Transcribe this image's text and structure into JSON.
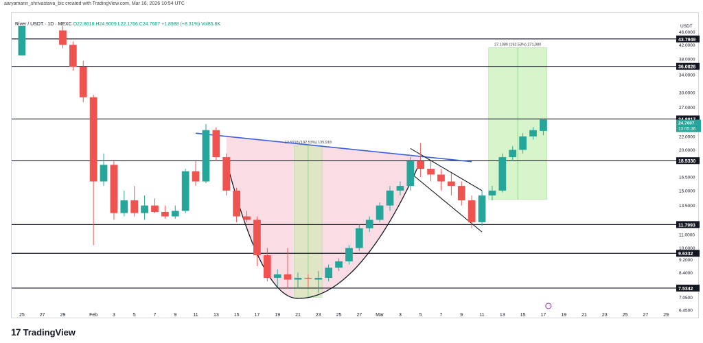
{
  "header": {
    "attribution": "aaryamann_shrivastava_bic created with TradingView.com, Mar 16, 2026 10:54 UTC"
  },
  "legend": {
    "symbol": "River / USDT · 1D · MEXC",
    "ohlc": "O22.8618 H24.9009 L22.1766 C24.7607 +1.8988 (+8.31%) Vol85.8K"
  },
  "footer": {
    "brand": "TradingView",
    "logo_mark": "17"
  },
  "chart_data": {
    "type": "candlestick",
    "y_scale": "log",
    "ylim": [
      6.45,
      47.5
    ],
    "currency_label": "USDT",
    "y_ticks": [
      46.0,
      42.0,
      38.0,
      34.0,
      30.0,
      27.0,
      22.0,
      20.0,
      16.5,
      15.0,
      13.5,
      11.0,
      10.0,
      9.2,
      8.4,
      7.05,
      6.45
    ],
    "y_tick_labels": [
      "46.0000",
      "42.0000",
      "38.0000",
      "34.0000",
      "30.0000",
      "27.0000",
      "22.0000",
      "20.0000",
      "16.5000",
      "15.0000",
      "13.5000",
      "11.0000",
      "10.0000",
      "9.2000",
      "8.4000",
      "7.0500",
      "6.4500"
    ],
    "x_tick_labels": [
      "25",
      "27",
      "29",
      "Feb",
      "3",
      "5",
      "7",
      "9",
      "11",
      "13",
      "15",
      "17",
      "19",
      "21",
      "23",
      "25",
      "27",
      "Mar",
      "3",
      "5",
      "7",
      "9",
      "11",
      "13",
      "15",
      "17",
      "19",
      "21",
      "23",
      "25",
      "27",
      "29"
    ],
    "x_tick_days": [
      -7,
      -5,
      -3,
      0,
      2,
      4,
      6,
      8,
      10,
      12,
      14,
      16,
      18,
      20,
      22,
      24,
      26,
      28,
      30,
      32,
      34,
      36,
      38,
      40,
      42,
      44,
      46,
      48,
      50,
      52,
      54,
      56
    ],
    "day_zero": "Feb 1",
    "candles": [
      {
        "d": -7,
        "o": 39.0,
        "h": 48.0,
        "l": 39.0,
        "c": 48.0
      },
      {
        "d": -3,
        "o": 46.5,
        "h": 48.0,
        "l": 41.0,
        "c": 42.0
      },
      {
        "d": -2,
        "o": 42.0,
        "h": 43.0,
        "l": 35.0,
        "c": 36.0
      },
      {
        "d": -1,
        "o": 36.0,
        "h": 37.5,
        "l": 28.0,
        "c": 29.0
      },
      {
        "d": 0,
        "o": 29.0,
        "h": 29.5,
        "l": 10.2,
        "c": 16.0
      },
      {
        "d": 1,
        "o": 16.0,
        "h": 19.5,
        "l": 15.5,
        "c": 18.0
      },
      {
        "d": 2,
        "o": 18.0,
        "h": 18.5,
        "l": 12.2,
        "c": 12.8
      },
      {
        "d": 3,
        "o": 12.8,
        "h": 15.0,
        "l": 12.5,
        "c": 14.0
      },
      {
        "d": 4,
        "o": 14.0,
        "h": 15.5,
        "l": 12.5,
        "c": 12.8
      },
      {
        "d": 5,
        "o": 12.8,
        "h": 14.5,
        "l": 12.2,
        "c": 13.5
      },
      {
        "d": 6,
        "o": 13.5,
        "h": 14.2,
        "l": 12.8,
        "c": 12.9
      },
      {
        "d": 7,
        "o": 12.9,
        "h": 13.5,
        "l": 12.3,
        "c": 12.5
      },
      {
        "d": 8,
        "o": 12.5,
        "h": 13.5,
        "l": 12.3,
        "c": 13.0
      },
      {
        "d": 9,
        "o": 13.0,
        "h": 17.5,
        "l": 12.8,
        "c": 17.2
      },
      {
        "d": 10,
        "o": 17.2,
        "h": 18.5,
        "l": 15.5,
        "c": 16.0
      },
      {
        "d": 11,
        "o": 16.0,
        "h": 24.0,
        "l": 15.8,
        "c": 23.0
      },
      {
        "d": 12,
        "o": 23.0,
        "h": 23.5,
        "l": 18.5,
        "c": 19.0
      },
      {
        "d": 13,
        "o": 19.0,
        "h": 19.5,
        "l": 14.5,
        "c": 15.0
      },
      {
        "d": 14,
        "o": 15.0,
        "h": 15.3,
        "l": 12.0,
        "c": 12.5
      },
      {
        "d": 15,
        "o": 12.5,
        "h": 13.0,
        "l": 12.0,
        "c": 12.2
      },
      {
        "d": 16,
        "o": 12.2,
        "h": 12.5,
        "l": 8.8,
        "c": 9.5
      },
      {
        "d": 17,
        "o": 9.5,
        "h": 10.0,
        "l": 7.9,
        "c": 8.1
      },
      {
        "d": 18,
        "o": 8.1,
        "h": 8.6,
        "l": 7.6,
        "c": 8.3
      },
      {
        "d": 19,
        "o": 8.3,
        "h": 10.0,
        "l": 7.5,
        "c": 8.0
      },
      {
        "d": 20,
        "o": 8.0,
        "h": 8.4,
        "l": 7.5,
        "c": 8.1
      },
      {
        "d": 21,
        "o": 8.1,
        "h": 8.3,
        "l": 7.6,
        "c": 8.05
      },
      {
        "d": 22,
        "o": 8.0,
        "h": 8.5,
        "l": 7.3,
        "c": 8.1
      },
      {
        "d": 23,
        "o": 8.1,
        "h": 8.9,
        "l": 7.9,
        "c": 8.7
      },
      {
        "d": 24,
        "o": 8.7,
        "h": 9.3,
        "l": 8.5,
        "c": 9.1
      },
      {
        "d": 25,
        "o": 9.1,
        "h": 10.2,
        "l": 8.9,
        "c": 10.0
      },
      {
        "d": 26,
        "o": 10.0,
        "h": 11.8,
        "l": 9.8,
        "c": 11.5
      },
      {
        "d": 27,
        "o": 11.5,
        "h": 12.5,
        "l": 11.2,
        "c": 12.2
      },
      {
        "d": 28,
        "o": 12.2,
        "h": 13.8,
        "l": 12.0,
        "c": 13.5
      },
      {
        "d": 29,
        "o": 13.5,
        "h": 15.5,
        "l": 13.0,
        "c": 15.0
      },
      {
        "d": 30,
        "o": 15.0,
        "h": 16.0,
        "l": 14.5,
        "c": 15.5
      },
      {
        "d": 31,
        "o": 15.5,
        "h": 19.0,
        "l": 15.0,
        "c": 18.5
      },
      {
        "d": 32,
        "o": 18.5,
        "h": 21.0,
        "l": 16.5,
        "c": 17.5
      },
      {
        "d": 33,
        "o": 17.5,
        "h": 18.5,
        "l": 16.0,
        "c": 16.8
      },
      {
        "d": 34,
        "o": 16.8,
        "h": 17.5,
        "l": 15.0,
        "c": 16.0
      },
      {
        "d": 35,
        "o": 16.0,
        "h": 17.0,
        "l": 14.5,
        "c": 15.5
      },
      {
        "d": 36,
        "o": 15.5,
        "h": 16.0,
        "l": 13.5,
        "c": 14.0
      },
      {
        "d": 37,
        "o": 14.0,
        "h": 14.5,
        "l": 11.5,
        "c": 12.0
      },
      {
        "d": 38,
        "o": 12.0,
        "h": 15.0,
        "l": 11.7,
        "c": 14.5
      },
      {
        "d": 39,
        "o": 14.5,
        "h": 15.5,
        "l": 14.0,
        "c": 15.0
      },
      {
        "d": 40,
        "o": 15.0,
        "h": 19.5,
        "l": 14.8,
        "c": 19.0
      },
      {
        "d": 41,
        "o": 19.0,
        "h": 20.5,
        "l": 18.5,
        "c": 20.0
      },
      {
        "d": 42,
        "o": 20.0,
        "h": 22.5,
        "l": 19.5,
        "c": 22.0
      },
      {
        "d": 43,
        "o": 22.0,
        "h": 23.5,
        "l": 21.5,
        "c": 23.0
      },
      {
        "d": 44,
        "o": 22.86,
        "h": 24.9,
        "l": 22.18,
        "c": 24.76
      }
    ],
    "horizontal_levels": [
      {
        "price": 43.7949,
        "label": "43.7949"
      },
      {
        "price": 36.0826,
        "label": "36.0826"
      },
      {
        "price": 24.8817,
        "label": "24.8817"
      },
      {
        "price": 18.533,
        "label": "18.5330"
      },
      {
        "price": 11.7993,
        "label": "11.7993"
      },
      {
        "price": 9.6332,
        "label": "9.6332"
      },
      {
        "price": 7.5342,
        "label": "7.5342"
      }
    ],
    "last_price": {
      "label": "24.7607",
      "timer": "13:05:36"
    },
    "measure_boxes": [
      {
        "label": "13.5918 (192.53%) 135,918",
        "d_from": 20,
        "d_to": 22,
        "p_from": 7.05,
        "p_to": 20.65,
        "color": "#d4e9b8"
      },
      {
        "label": "27.1080 (192.53%) 271,080",
        "d_from": 39,
        "d_to": 44,
        "p_from": 14.08,
        "p_to": 41.19,
        "color": "#c8f0b4"
      }
    ],
    "pattern_zone": {
      "color": "#f8d0dc"
    },
    "neckline": {
      "d_from": 10,
      "p_from": 22.5,
      "d_to": 37,
      "p_to": 18.4,
      "color": "#3b5fd9"
    },
    "cup_curve": {
      "d_from": 13,
      "d_mid": 20,
      "d_to": 32,
      "p_top": 18.5,
      "p_bottom": 7.0
    },
    "flag_channel": {
      "upper": [
        [
          31,
          20.2
        ],
        [
          38,
          15.0
        ]
      ],
      "lower": [
        [
          31,
          17.0
        ],
        [
          38,
          11.2
        ]
      ]
    }
  },
  "colors": {
    "up": "#26a69a",
    "down": "#ef5350",
    "level_line": "#131722",
    "last_price_bg": "#26a69a"
  }
}
